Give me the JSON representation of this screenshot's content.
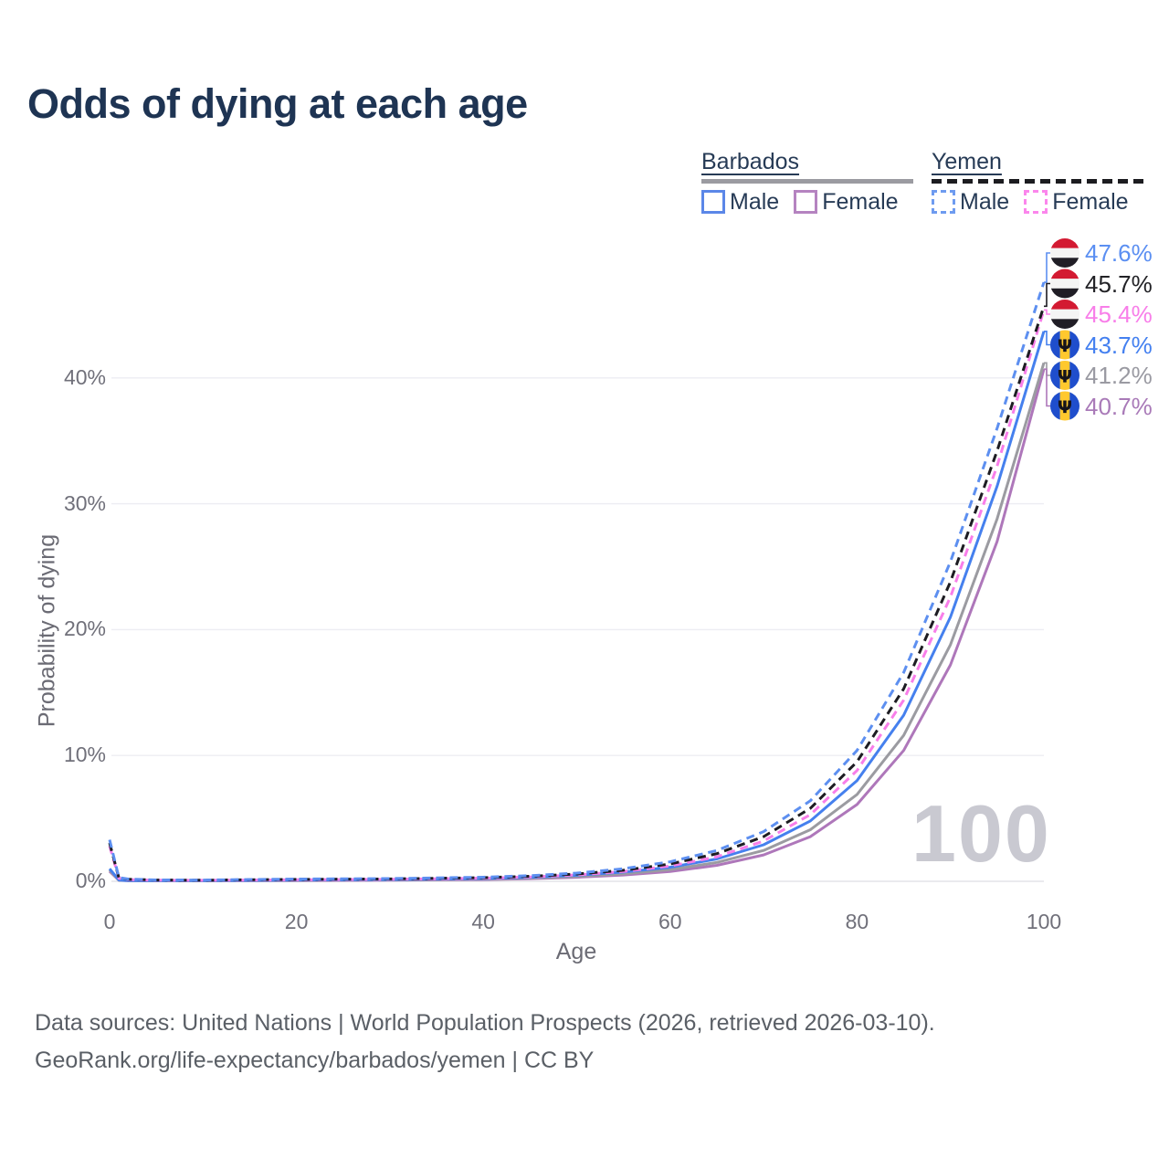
{
  "title": "Odds of dying at each age",
  "legend": {
    "groups": [
      {
        "label": "Barbados",
        "line_style": "solid",
        "line_color": "#9b9ba1",
        "items": [
          {
            "label": "Male",
            "swatch_color": "#5b87e8",
            "dashed": false
          },
          {
            "label": "Female",
            "swatch_color": "#b583c0",
            "dashed": false
          }
        ]
      },
      {
        "label": "Yemen",
        "line_style": "dashed",
        "line_color": "#1c1c20",
        "items": [
          {
            "label": "Male",
            "swatch_color": "#6e9bf0",
            "dashed": true
          },
          {
            "label": "Female",
            "swatch_color": "#fb86ec",
            "dashed": true
          }
        ]
      }
    ]
  },
  "chart_data": {
    "type": "line",
    "title": "Odds of dying at each age",
    "xlabel": "Age",
    "ylabel": "Probability of dying",
    "x_ticks": [
      0,
      20,
      40,
      60,
      80,
      100
    ],
    "y_ticks": [
      "0%",
      "10%",
      "20%",
      "30%",
      "40%"
    ],
    "xlim": [
      0,
      100
    ],
    "ylim_pct": [
      0,
      50
    ],
    "grid": "horizontal",
    "legend_position": "top-right",
    "watermark": "100",
    "x": [
      0,
      1,
      2,
      5,
      10,
      20,
      30,
      40,
      45,
      50,
      55,
      60,
      65,
      70,
      75,
      80,
      85,
      90,
      95,
      100
    ],
    "series": [
      {
        "name": "Barbados Female",
        "country": "Barbados",
        "sex": "Female",
        "color": "#ae77ba",
        "dash": false,
        "flag": "barbados",
        "end_label": "40.7%",
        "end_label_color": "#a97ab8",
        "values_pct": [
          0.8,
          0.08,
          0.045,
          0.035,
          0.035,
          0.06,
          0.09,
          0.14,
          0.21,
          0.32,
          0.5,
          0.78,
          1.27,
          2.1,
          3.55,
          6.1,
          10.4,
          17.2,
          27.0,
          40.7
        ]
      },
      {
        "name": "Barbados",
        "country": "Barbados",
        "sex": "Both sexes",
        "color": "#9b9ba1",
        "dash": false,
        "flag": "barbados",
        "end_label": "41.2%",
        "end_label_color": "#9a9aa2",
        "values_pct": [
          0.9,
          0.09,
          0.05,
          0.04,
          0.04,
          0.08,
          0.11,
          0.18,
          0.26,
          0.39,
          0.6,
          0.93,
          1.5,
          2.45,
          4.1,
          6.9,
          11.6,
          18.8,
          28.8,
          41.2
        ]
      },
      {
        "name": "Barbados Male",
        "country": "Barbados",
        "sex": "Male",
        "color": "#4580ee",
        "dash": false,
        "flag": "barbados",
        "end_label": "43.7%",
        "end_label_color": "#4480f0",
        "values_pct": [
          1.0,
          0.1,
          0.06,
          0.05,
          0.05,
          0.1,
          0.14,
          0.22,
          0.32,
          0.48,
          0.73,
          1.12,
          1.78,
          2.9,
          4.8,
          8.0,
          13.2,
          21.0,
          31.4,
          43.7
        ]
      },
      {
        "name": "Yemen Female",
        "country": "Yemen",
        "sex": "Female",
        "color": "#f87ee9",
        "dash": true,
        "flag": "yemen",
        "end_label": "45.4%",
        "end_label_color": "#f87ee9",
        "values_pct": [
          2.8,
          0.24,
          0.14,
          0.09,
          0.08,
          0.12,
          0.16,
          0.25,
          0.35,
          0.51,
          0.78,
          1.22,
          1.95,
          3.2,
          5.3,
          8.8,
          14.4,
          22.6,
          33.0,
          45.4
        ]
      },
      {
        "name": "Yemen",
        "country": "Yemen",
        "sex": "Both sexes",
        "color": "#1d1c22",
        "dash": true,
        "flag": "yemen",
        "end_label": "45.7%",
        "end_label_color": "#222226",
        "values_pct": [
          3.05,
          0.27,
          0.16,
          0.1,
          0.09,
          0.15,
          0.19,
          0.29,
          0.4,
          0.58,
          0.88,
          1.38,
          2.2,
          3.55,
          5.8,
          9.5,
          15.3,
          23.8,
          34.2,
          45.7
        ]
      },
      {
        "name": "Yemen Male",
        "country": "Yemen",
        "sex": "Male",
        "color": "#5d8ff0",
        "dash": true,
        "flag": "yemen",
        "end_label": "47.6%",
        "end_label_color": "#5b8ff2",
        "values_pct": [
          3.3,
          0.3,
          0.18,
          0.11,
          0.1,
          0.18,
          0.22,
          0.33,
          0.45,
          0.65,
          1.0,
          1.55,
          2.45,
          3.95,
          6.4,
          10.4,
          16.6,
          25.4,
          36.0,
          47.6
        ]
      }
    ]
  },
  "footer": {
    "line1": "Data sources: United Nations | World Population Prospects (2026, retrieved 2026-03-10).",
    "line2": "GeoRank.org/life-expectancy/barbados/yemen | CC BY"
  }
}
